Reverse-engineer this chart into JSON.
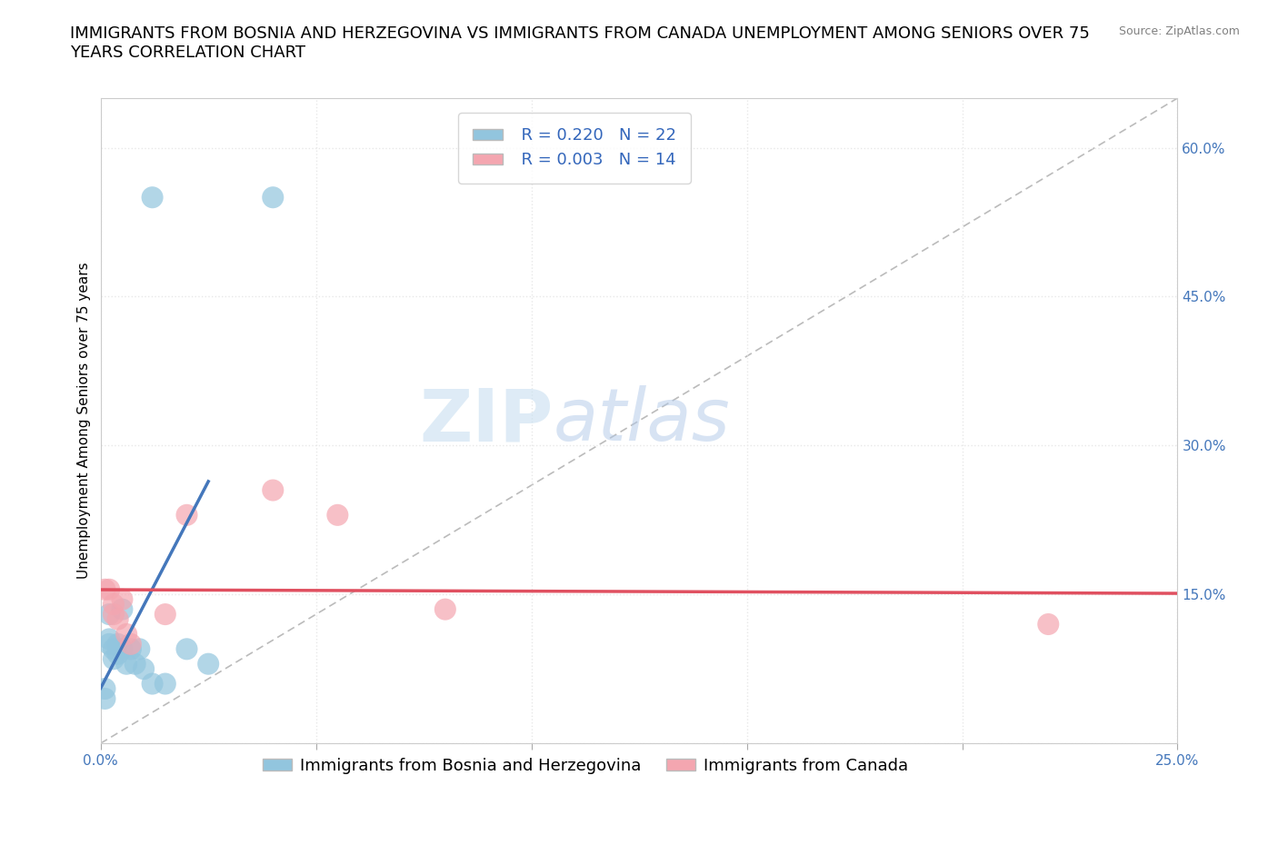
{
  "title": "IMMIGRANTS FROM BOSNIA AND HERZEGOVINA VS IMMIGRANTS FROM CANADA UNEMPLOYMENT AMONG SENIORS OVER 75\nYEARS CORRELATION CHART",
  "source": "Source: ZipAtlas.com",
  "ylabel": "Unemployment Among Seniors over 75 years",
  "xlim": [
    0.0,
    0.25
  ],
  "ylim": [
    0.0,
    0.65
  ],
  "x_ticks": [
    0.0,
    0.05,
    0.1,
    0.15,
    0.2,
    0.25
  ],
  "x_tick_labels": [
    "0.0%",
    "",
    "",
    "",
    "",
    "25.0%"
  ],
  "y_ticks": [
    0.0,
    0.15,
    0.3,
    0.45,
    0.6
  ],
  "y_tick_labels_right": [
    "",
    "15.0%",
    "30.0%",
    "45.0%",
    "60.0%"
  ],
  "legend1_R": "0.220",
  "legend1_N": "22",
  "legend2_R": "0.003",
  "legend2_N": "14",
  "color_bosnia": "#92c5de",
  "color_canada": "#f4a6b0",
  "trendline_color_bosnia": "#4477bb",
  "trendline_color_canada": "#e05060",
  "ref_line_color": "#bbbbbb",
  "watermark_zip": "ZIP",
  "watermark_atlas": "atlas",
  "bosnia_x": [
    0.001,
    0.001,
    0.002,
    0.002,
    0.002,
    0.003,
    0.003,
    0.004,
    0.004,
    0.005,
    0.005,
    0.006,
    0.007,
    0.008,
    0.009,
    0.01,
    0.012,
    0.015,
    0.02,
    0.04,
    0.012,
    0.025
  ],
  "bosnia_y": [
    0.055,
    0.045,
    0.13,
    0.105,
    0.1,
    0.095,
    0.085,
    0.1,
    0.09,
    0.135,
    0.095,
    0.08,
    0.095,
    0.08,
    0.095,
    0.075,
    0.06,
    0.06,
    0.095,
    0.55,
    0.55,
    0.08
  ],
  "canada_x": [
    0.001,
    0.002,
    0.003,
    0.003,
    0.004,
    0.005,
    0.006,
    0.007,
    0.015,
    0.02,
    0.04,
    0.055,
    0.08,
    0.22
  ],
  "canada_y": [
    0.155,
    0.155,
    0.14,
    0.13,
    0.125,
    0.145,
    0.11,
    0.1,
    0.13,
    0.23,
    0.255,
    0.23,
    0.135,
    0.12
  ],
  "grid_color": "#e8e8e8",
  "background_color": "#ffffff",
  "title_fontsize": 13,
  "label_fontsize": 11,
  "tick_fontsize": 11,
  "legend_fontsize": 13
}
